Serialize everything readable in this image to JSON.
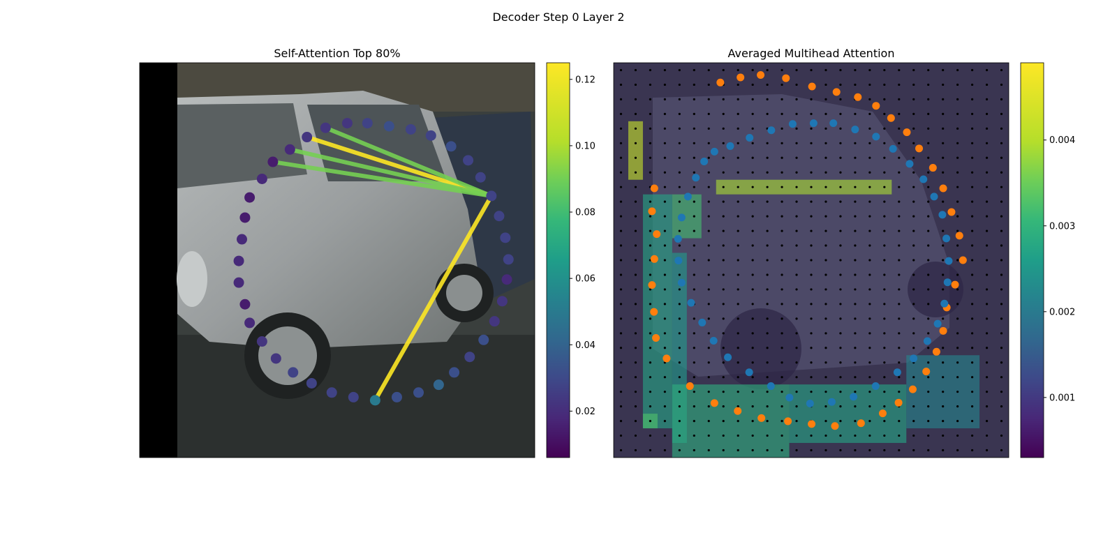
{
  "figure": {
    "suptitle": "Decoder Step 0 Layer 2"
  },
  "colors": {
    "viridis_low": "#440154",
    "viridis_high": "#fde725",
    "blue_points": "#1f77b4",
    "orange_points": "#ff7f0e",
    "grid_dots": "#000000",
    "photo_background": "#3a3f3d"
  },
  "chart_data": [
    {
      "type": "scatter",
      "title": "Self-Attention Top 80%",
      "xlabel": "",
      "ylabel": "",
      "image_extent": [
        0,
        255,
        255,
        0
      ],
      "grid": false,
      "colormap": "viridis",
      "color_range": [
        0.006,
        0.125
      ],
      "colorbar_ticks": [
        0.02,
        0.04,
        0.06,
        0.08,
        0.1,
        0.12
      ],
      "colorbar_labels": [
        "0.02",
        "0.04",
        "0.06",
        "0.08",
        "0.10",
        "0.12"
      ],
      "query_index": 13,
      "points": [
        {
          "x": 152,
          "y": 218,
          "v": 0.055
        },
        {
          "x": 166,
          "y": 216,
          "v": 0.035
        },
        {
          "x": 180,
          "y": 213,
          "v": 0.035
        },
        {
          "x": 193,
          "y": 208,
          "v": 0.045
        },
        {
          "x": 203,
          "y": 200,
          "v": 0.035
        },
        {
          "x": 213,
          "y": 190,
          "v": 0.03
        },
        {
          "x": 222,
          "y": 179,
          "v": 0.035
        },
        {
          "x": 229,
          "y": 167,
          "v": 0.025
        },
        {
          "x": 234,
          "y": 154,
          "v": 0.025
        },
        {
          "x": 237,
          "y": 140,
          "v": 0.02
        },
        {
          "x": 238,
          "y": 127,
          "v": 0.03
        },
        {
          "x": 236,
          "y": 113,
          "v": 0.03
        },
        {
          "x": 232,
          "y": 99,
          "v": 0.03
        },
        {
          "x": 227,
          "y": 86,
          "v": 0.03
        },
        {
          "x": 220,
          "y": 74,
          "v": 0.03
        },
        {
          "x": 212,
          "y": 63,
          "v": 0.03
        },
        {
          "x": 201,
          "y": 54,
          "v": 0.035
        },
        {
          "x": 188,
          "y": 47,
          "v": 0.03
        },
        {
          "x": 175,
          "y": 43,
          "v": 0.03
        },
        {
          "x": 161,
          "y": 41,
          "v": 0.035
        },
        {
          "x": 147,
          "y": 39,
          "v": 0.03
        },
        {
          "x": 134,
          "y": 39,
          "v": 0.025
        },
        {
          "x": 120,
          "y": 42,
          "v": 0.025
        },
        {
          "x": 108,
          "y": 48,
          "v": 0.025
        },
        {
          "x": 97,
          "y": 56,
          "v": 0.02
        },
        {
          "x": 86,
          "y": 64,
          "v": 0.015
        },
        {
          "x": 79,
          "y": 75,
          "v": 0.02
        },
        {
          "x": 71,
          "y": 87,
          "v": 0.015
        },
        {
          "x": 68,
          "y": 100,
          "v": 0.015
        },
        {
          "x": 66,
          "y": 114,
          "v": 0.02
        },
        {
          "x": 64,
          "y": 128,
          "v": 0.02
        },
        {
          "x": 64,
          "y": 142,
          "v": 0.02
        },
        {
          "x": 68,
          "y": 156,
          "v": 0.015
        },
        {
          "x": 71,
          "y": 168,
          "v": 0.02
        },
        {
          "x": 79,
          "y": 180,
          "v": 0.025
        },
        {
          "x": 88,
          "y": 191,
          "v": 0.025
        },
        {
          "x": 99,
          "y": 200,
          "v": 0.03
        },
        {
          "x": 111,
          "y": 207,
          "v": 0.03
        },
        {
          "x": 124,
          "y": 213,
          "v": 0.03
        },
        {
          "x": 138,
          "y": 216,
          "v": 0.03
        }
      ],
      "attention_lines": [
        {
          "from": 13,
          "to": 23,
          "v": 0.125
        },
        {
          "from": 13,
          "to": 0,
          "v": 0.125
        },
        {
          "from": 13,
          "to": 24,
          "v": 0.1
        },
        {
          "from": 13,
          "to": 22,
          "v": 0.1
        },
        {
          "from": 13,
          "to": 25,
          "v": 0.1
        }
      ]
    },
    {
      "type": "heatmap",
      "title": "Averaged Multihead Attention",
      "xlabel": "",
      "ylabel": "",
      "grid_size": [
        27,
        27
      ],
      "grid_dots": true,
      "colormap": "viridis",
      "color_range": [
        0.0003,
        0.0049
      ],
      "colorbar_ticks": [
        0.001,
        0.002,
        0.003,
        0.004
      ],
      "colorbar_labels": [
        "0.001",
        "0.002",
        "0.003",
        "0.004"
      ],
      "attention_regions": [
        {
          "rows": [
            8,
            9
          ],
          "cols": [
            7,
            19
          ],
          "v": 0.0043
        },
        {
          "rows": [
            9,
            12
          ],
          "cols": [
            4,
            6
          ],
          "v": 0.0035
        },
        {
          "rows": [
            9,
            25
          ],
          "cols": [
            2,
            4
          ],
          "v": 0.003
        },
        {
          "rows": [
            13,
            26
          ],
          "cols": [
            4,
            5
          ],
          "v": 0.0028
        },
        {
          "rows": [
            22,
            27
          ],
          "cols": [
            4,
            12
          ],
          "v": 0.0032
        },
        {
          "rows": [
            22,
            26
          ],
          "cols": [
            12,
            20
          ],
          "v": 0.003
        },
        {
          "rows": [
            20,
            25
          ],
          "cols": [
            20,
            25
          ],
          "v": 0.0024
        },
        {
          "rows": [
            4,
            8
          ],
          "cols": [
            1,
            2
          ],
          "v": 0.0045
        },
        {
          "rows": [
            24,
            25
          ],
          "cols": [
            2,
            3
          ],
          "v": 0.0036
        }
      ],
      "orange_points": [
        {
          "x": 0.27,
          "y": 0.05
        },
        {
          "x": 0.321,
          "y": 0.037
        },
        {
          "x": 0.372,
          "y": 0.031
        },
        {
          "x": 0.436,
          "y": 0.039
        },
        {
          "x": 0.502,
          "y": 0.06
        },
        {
          "x": 0.564,
          "y": 0.074
        },
        {
          "x": 0.618,
          "y": 0.087
        },
        {
          "x": 0.664,
          "y": 0.109
        },
        {
          "x": 0.702,
          "y": 0.14
        },
        {
          "x": 0.742,
          "y": 0.176
        },
        {
          "x": 0.773,
          "y": 0.217
        },
        {
          "x": 0.808,
          "y": 0.266
        },
        {
          "x": 0.834,
          "y": 0.318
        },
        {
          "x": 0.855,
          "y": 0.378
        },
        {
          "x": 0.875,
          "y": 0.438
        },
        {
          "x": 0.884,
          "y": 0.5
        },
        {
          "x": 0.864,
          "y": 0.562
        },
        {
          "x": 0.843,
          "y": 0.62
        },
        {
          "x": 0.834,
          "y": 0.679
        },
        {
          "x": 0.817,
          "y": 0.732
        },
        {
          "x": 0.791,
          "y": 0.782
        },
        {
          "x": 0.757,
          "y": 0.827
        },
        {
          "x": 0.721,
          "y": 0.861
        },
        {
          "x": 0.681,
          "y": 0.888
        },
        {
          "x": 0.626,
          "y": 0.913
        },
        {
          "x": 0.56,
          "y": 0.92
        },
        {
          "x": 0.501,
          "y": 0.915
        },
        {
          "x": 0.441,
          "y": 0.908
        },
        {
          "x": 0.374,
          "y": 0.9
        },
        {
          "x": 0.314,
          "y": 0.882
        },
        {
          "x": 0.255,
          "y": 0.862
        },
        {
          "x": 0.193,
          "y": 0.819
        },
        {
          "x": 0.134,
          "y": 0.749
        },
        {
          "x": 0.107,
          "y": 0.697
        },
        {
          "x": 0.102,
          "y": 0.631
        },
        {
          "x": 0.097,
          "y": 0.563
        },
        {
          "x": 0.103,
          "y": 0.497
        },
        {
          "x": 0.109,
          "y": 0.434
        },
        {
          "x": 0.097,
          "y": 0.376
        },
        {
          "x": 0.103,
          "y": 0.318
        }
      ],
      "blue_points": [
        {
          "x": 0.255,
          "y": 0.225
        },
        {
          "x": 0.295,
          "y": 0.211
        },
        {
          "x": 0.344,
          "y": 0.19
        },
        {
          "x": 0.399,
          "y": 0.171
        },
        {
          "x": 0.453,
          "y": 0.155
        },
        {
          "x": 0.506,
          "y": 0.153
        },
        {
          "x": 0.556,
          "y": 0.153
        },
        {
          "x": 0.611,
          "y": 0.169
        },
        {
          "x": 0.664,
          "y": 0.187
        },
        {
          "x": 0.707,
          "y": 0.218
        },
        {
          "x": 0.749,
          "y": 0.256
        },
        {
          "x": 0.784,
          "y": 0.295
        },
        {
          "x": 0.811,
          "y": 0.339
        },
        {
          "x": 0.832,
          "y": 0.385
        },
        {
          "x": 0.842,
          "y": 0.445
        },
        {
          "x": 0.848,
          "y": 0.502
        },
        {
          "x": 0.845,
          "y": 0.556
        },
        {
          "x": 0.837,
          "y": 0.61
        },
        {
          "x": 0.82,
          "y": 0.661
        },
        {
          "x": 0.794,
          "y": 0.705
        },
        {
          "x": 0.759,
          "y": 0.749
        },
        {
          "x": 0.718,
          "y": 0.784
        },
        {
          "x": 0.663,
          "y": 0.819
        },
        {
          "x": 0.607,
          "y": 0.846
        },
        {
          "x": 0.552,
          "y": 0.859
        },
        {
          "x": 0.497,
          "y": 0.863
        },
        {
          "x": 0.445,
          "y": 0.848
        },
        {
          "x": 0.398,
          "y": 0.819
        },
        {
          "x": 0.343,
          "y": 0.784
        },
        {
          "x": 0.289,
          "y": 0.746
        },
        {
          "x": 0.253,
          "y": 0.704
        },
        {
          "x": 0.224,
          "y": 0.658
        },
        {
          "x": 0.196,
          "y": 0.608
        },
        {
          "x": 0.172,
          "y": 0.557
        },
        {
          "x": 0.164,
          "y": 0.501
        },
        {
          "x": 0.163,
          "y": 0.446
        },
        {
          "x": 0.172,
          "y": 0.392
        },
        {
          "x": 0.188,
          "y": 0.339
        },
        {
          "x": 0.208,
          "y": 0.291
        },
        {
          "x": 0.229,
          "y": 0.25
        }
      ]
    }
  ]
}
